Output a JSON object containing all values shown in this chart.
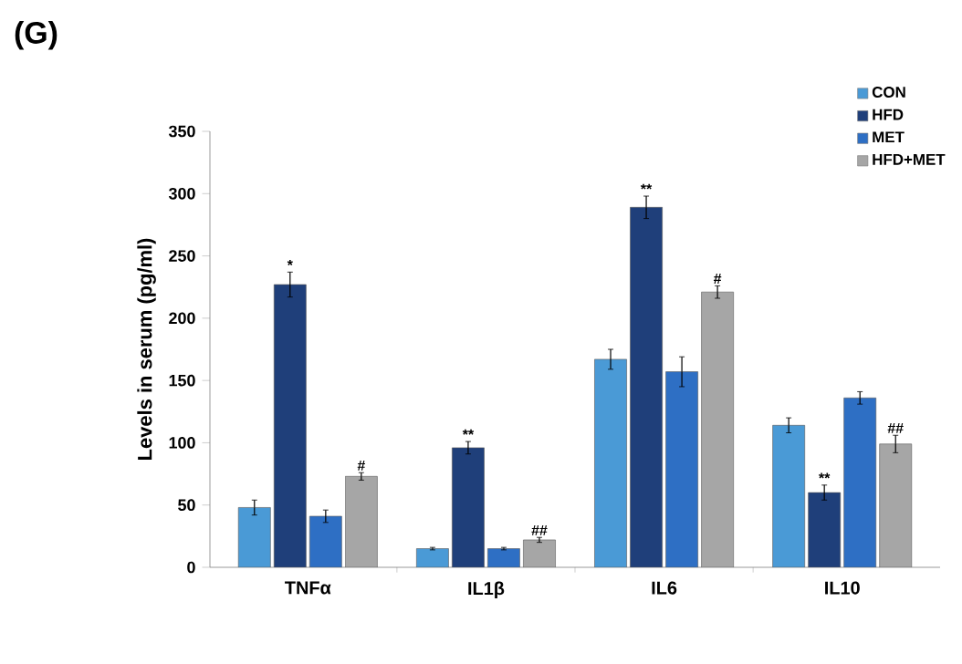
{
  "chart_data": {
    "type": "bar",
    "title": "(G)",
    "ylabel": "Levels in serum (pg/ml)",
    "categories": [
      "TNFα",
      "IL1β",
      "IL6",
      "IL10"
    ],
    "series": [
      {
        "name": "CON",
        "color": "#4a9ad6",
        "values": [
          48,
          15,
          167,
          114
        ],
        "errors": [
          6,
          1,
          8,
          6
        ]
      },
      {
        "name": "HFD",
        "color": "#1f3f7a",
        "values": [
          227,
          96,
          289,
          60
        ],
        "errors": [
          10,
          5,
          9,
          6
        ],
        "value_labels": [
          "*",
          "**",
          "**",
          "**"
        ]
      },
      {
        "name": "MET",
        "color": "#2e6fc4",
        "values": [
          41,
          15,
          157,
          136
        ],
        "errors": [
          5,
          1,
          12,
          5
        ]
      },
      {
        "name": "HFD+MET",
        "color": "#a6a6a6",
        "values": [
          73,
          22,
          221,
          99
        ],
        "errors": [
          3,
          2,
          5,
          7
        ],
        "value_labels": [
          "#",
          "##",
          "#",
          "##"
        ]
      }
    ],
    "ylim": [
      0,
      350
    ],
    "yticks": [
      0,
      50,
      100,
      150,
      200,
      250,
      300,
      350
    ],
    "legend": "top right",
    "grid": false
  }
}
